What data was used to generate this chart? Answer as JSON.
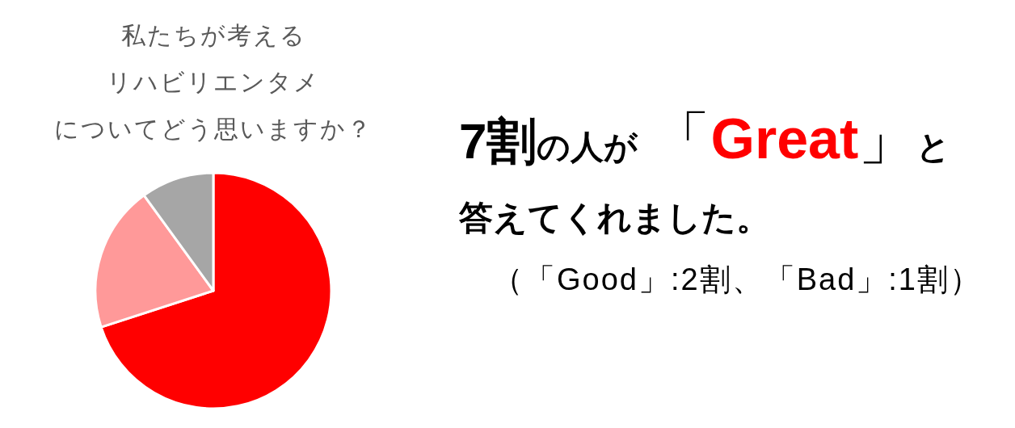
{
  "chart_data": {
    "type": "pie",
    "title": "私たちが考えるリハビリエンタメについてどう思いますか？",
    "categories": [
      null,
      null,
      null
    ],
    "values": [
      70,
      20,
      10
    ],
    "colors": [
      "#ff0000",
      "#ff9999",
      "#a6a6a6"
    ],
    "annotations": [
      "7割",
      "の人が",
      "「",
      "Great",
      "」",
      "と",
      "答えてくれました。",
      "（「Good」:2割、「Bad」:1割）"
    ]
  }
}
